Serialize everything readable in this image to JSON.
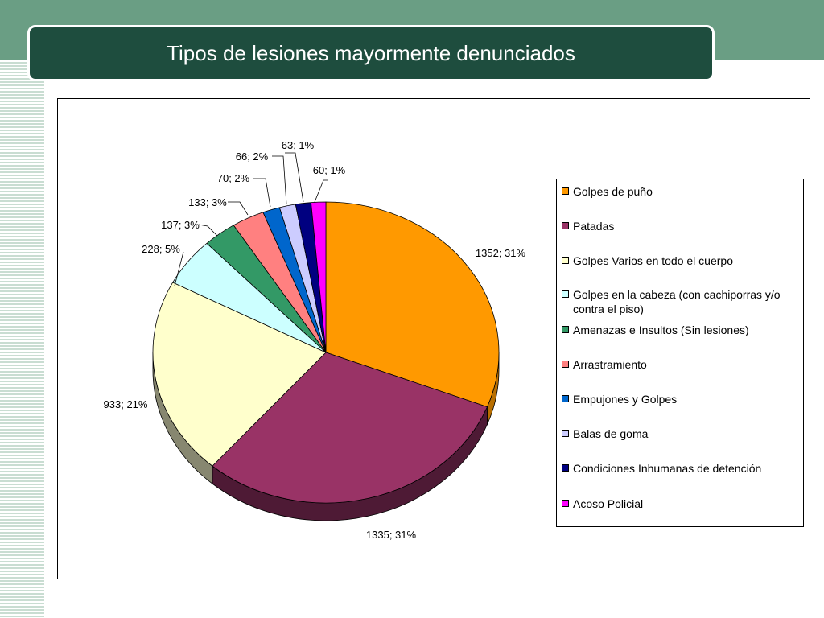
{
  "slide": {
    "title": "Tipos de lesiones mayormente denunciados",
    "band_color": "#6a9e84",
    "title_bg_color": "#1e4d3e"
  },
  "chart_data": {
    "type": "pie",
    "title": "",
    "legend_position": "right",
    "series": [
      {
        "name": "Golpes de puño",
        "value": 1352,
        "label": "1352; 31%",
        "color": "#ff9900",
        "side": "#b86e00"
      },
      {
        "name": "Patadas",
        "value": 1335,
        "label": "1335; 31%",
        "color": "#993366",
        "side": "#4e1a35"
      },
      {
        "name": "Golpes Varios en todo el cuerpo",
        "value": 933,
        "label": "933; 21%",
        "color": "#ffffcc",
        "side": "#878770"
      },
      {
        "name": "Golpes en la cabeza (con cachiporras y/o contra el piso)",
        "value": 228,
        "label": "228; 5%",
        "color": "#ccffff",
        "side": "#6e8888"
      },
      {
        "name": "Amenazas e Insultos (Sin lesiones)",
        "value": 137,
        "label": "137; 3%",
        "color": "#339966",
        "side": "#1b5236"
      },
      {
        "name": "Arrastramiento",
        "value": 133,
        "label": "133; 3%",
        "color": "#ff8080",
        "side": "#8a4545"
      },
      {
        "name": "Empujones y Golpes",
        "value": 70,
        "label": "70; 2%",
        "color": "#0066cc",
        "side": "#00376e"
      },
      {
        "name": "Balas de goma",
        "value": 66,
        "label": "66; 2%",
        "color": "#ccccff",
        "side": "#6e6e8a"
      },
      {
        "name": "Condiciones Inhumanas de detención",
        "value": 63,
        "label": "63; 1%",
        "color": "#000080",
        "side": "#000045"
      },
      {
        "name": "Acoso Policial",
        "value": 60,
        "label": "60; 1%",
        "color": "#ff00ff",
        "side": "#8a008a"
      }
    ]
  }
}
